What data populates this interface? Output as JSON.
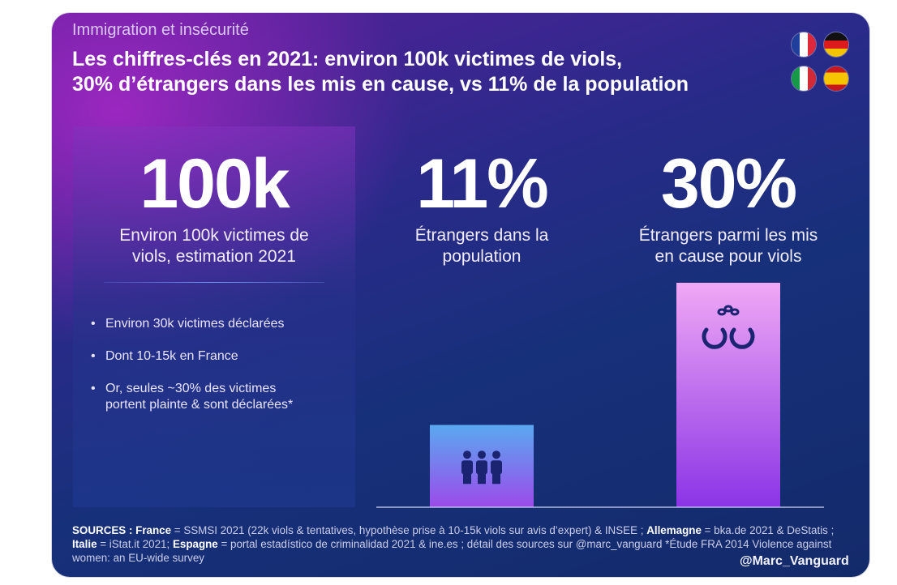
{
  "header": {
    "subtitle": "Immigration et insécurité",
    "title_line1": "Les chiffres-clés en 2021: environ 100k victimes de viols,",
    "title_line2": "30% d’étrangers dans les mis en cause, vs 11% de la population"
  },
  "flags": [
    "france-flag",
    "germany-flag",
    "italy-flag",
    "spain-flag"
  ],
  "stat_victims": {
    "value": "100k",
    "label_line1": "Environ 100k victimes de",
    "label_line2": "viols, estimation 2021"
  },
  "bullets": [
    {
      "line1": "Environ 30k victimes déclarées",
      "line2": ""
    },
    {
      "line1": "Dont 10-15k en France",
      "line2": ""
    },
    {
      "line1": "Or, seules ~30% des victimes",
      "line2": "portent plainte & sont déclarées*"
    }
  ],
  "chart_data": {
    "type": "bar",
    "categories": [
      "Étrangers dans la population",
      "Étrangers parmi les mis en cause pour viols"
    ],
    "values": [
      11,
      30
    ],
    "value_labels": [
      "11%",
      "30%"
    ],
    "label_lines": [
      [
        "Étrangers dans la",
        "population"
      ],
      [
        "Étrangers parmi les mis",
        "en cause pour viols"
      ]
    ],
    "unit": "%",
    "ylim": [
      0,
      30
    ],
    "bar_icons": [
      "people-group-icon",
      "handcuffs-icon"
    ],
    "colors": {
      "bar_top": "#5aa8f0",
      "bar_bottom": "#9b4bea",
      "bar2_top": "#f0a8f5",
      "bar2_bottom": "#8a34e6",
      "axis": "#cfd6f5"
    },
    "title": "",
    "xlabel": "",
    "ylabel": ""
  },
  "sources": {
    "label": "SOURCES :",
    "france_label": "France",
    "france_text": " = SSMSI 2021 (22k viols & tentatives, hypothèse prise à 10-15k viols sur avis d’expert) & INSEE ; ",
    "germany_label": "Allemagne",
    "germany_text": " = bka.de 2021 & DeStatis ; ",
    "italy_label": "Italie",
    "italy_text": " = iStat.it 2021; ",
    "spain_label": "Espagne",
    "spain_text": " = portal estadístico de criminalidad 2021 & ine.es ; détail des sources sur @marc_vanguard     *Étude FRA 2014 Violence against women: an EU-wide survey"
  },
  "handle": "@Marc_Vanguard"
}
